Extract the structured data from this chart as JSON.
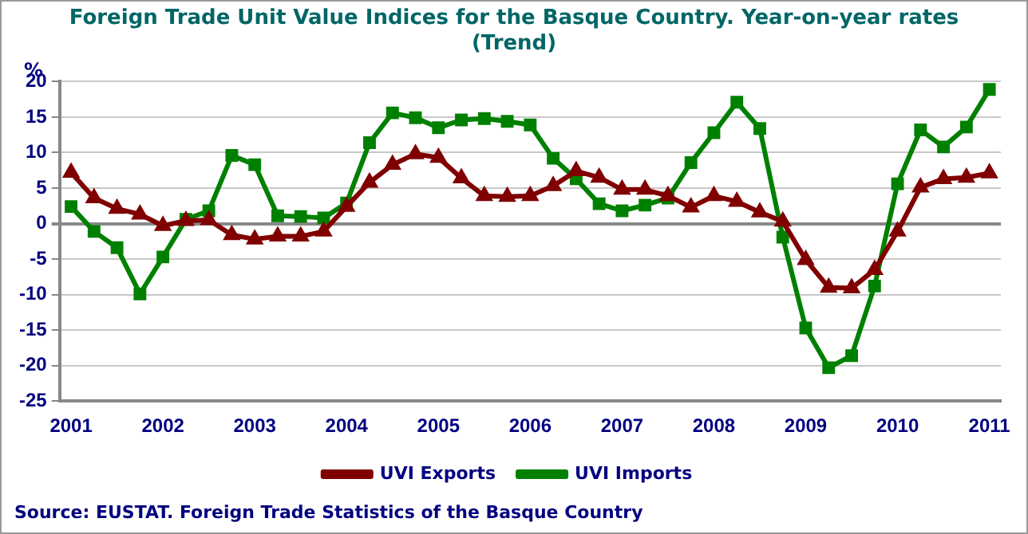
{
  "chart_data": {
    "type": "line",
    "title": "Foreign Trade Unit Value Indices for the Basque Country. Year-on-year rates\n(Trend)",
    "ylabel": "%",
    "x": [
      2001,
      2001.25,
      2001.5,
      2001.75,
      2002,
      2002.25,
      2002.5,
      2002.75,
      2003,
      2003.25,
      2003.5,
      2003.75,
      2004,
      2004.25,
      2004.5,
      2004.75,
      2005,
      2005.25,
      2005.5,
      2005.75,
      2006,
      2006.25,
      2006.5,
      2006.75,
      2007,
      2007.25,
      2007.5,
      2007.75,
      2008,
      2008.25,
      2008.5,
      2008.75,
      2009,
      2009.25,
      2009.5,
      2009.75,
      2010,
      2010.25,
      2010.5,
      2010.75,
      2011
    ],
    "series": [
      {
        "name": "UVI Exports",
        "color": "#800000",
        "marker": "triangle",
        "values": [
          7.2,
          3.6,
          2.1,
          1.3,
          -0.3,
          0.4,
          0.5,
          -1.6,
          -2.2,
          -1.8,
          -1.8,
          -1.1,
          2.4,
          5.8,
          8.3,
          9.8,
          9.3,
          6.4,
          3.9,
          3.8,
          3.9,
          5.3,
          7.4,
          6.5,
          4.8,
          4.8,
          3.9,
          2.3,
          3.9,
          3.1,
          1.6,
          0.3,
          -5.1,
          -9.0,
          -9.1,
          -6.5,
          -1.1,
          5.1,
          6.3,
          6.5,
          7.1
        ]
      },
      {
        "name": "UVI Imports",
        "color": "#008000",
        "marker": "square",
        "values": [
          2.4,
          -1.1,
          -3.4,
          -9.9,
          -4.7,
          0.6,
          1.8,
          9.6,
          8.3,
          1.1,
          1.0,
          0.8,
          2.9,
          11.4,
          15.6,
          14.9,
          13.5,
          14.6,
          14.8,
          14.4,
          13.9,
          9.2,
          6.3,
          2.8,
          1.8,
          2.6,
          3.6,
          8.6,
          12.8,
          17.1,
          13.4,
          -1.9,
          -14.7,
          -20.3,
          -18.6,
          -8.8,
          5.6,
          13.2,
          10.8,
          13.6,
          18.9
        ]
      }
    ],
    "xlim": [
      2000.875,
      2011.125
    ],
    "xticks": [
      2001,
      2002,
      2003,
      2004,
      2005,
      2006,
      2007,
      2008,
      2009,
      2010,
      2011
    ],
    "ylim": [
      -25,
      20
    ],
    "yticks": [
      -25,
      -20,
      -15,
      -10,
      -5,
      0,
      5,
      10,
      15,
      20
    ],
    "grid": "y",
    "legend": "bottom",
    "line_style": "solid",
    "annotations": [
      "Source: EUSTAT. Foreign Trade Statistics of the Basque Country"
    ]
  }
}
